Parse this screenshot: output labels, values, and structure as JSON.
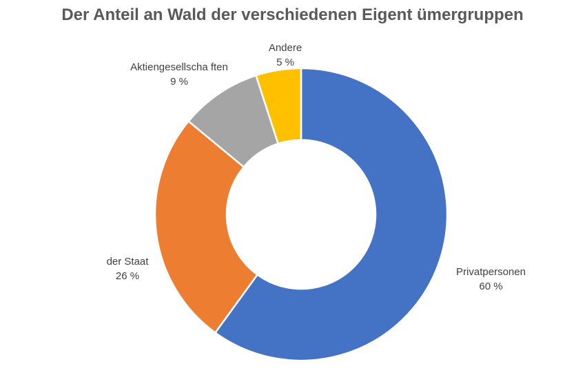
{
  "chart_data": {
    "type": "pie",
    "variant": "donut",
    "title": "Der Anteil an Wald der verschiedenen Eigent ümergruppen",
    "categories": [
      "Privatpersonen",
      "der Staat",
      "Aktiengesellscha ften",
      "Andere"
    ],
    "values": [
      60,
      26,
      9,
      5
    ],
    "value_labels": [
      "60 %",
      "26 %",
      "9 %",
      "5 %"
    ],
    "colors": [
      "#4472C4",
      "#ED7D31",
      "#A5A5A5",
      "#FFC000"
    ],
    "start": "top, clockwise",
    "legend": "none"
  }
}
